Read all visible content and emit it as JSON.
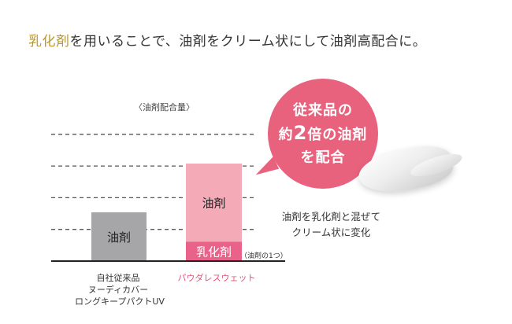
{
  "headline": {
    "accent": "乳化剤",
    "rest": "を用いることで、油剤をクリーム状にして油剤高配合に。"
  },
  "chart_data": {
    "type": "bar",
    "title": "〈油剤配合量〉",
    "categories": [
      "自社従来品 ヌーディカバー ロングキープパクトUV",
      "パウダレスウェット"
    ],
    "series": [
      {
        "name": "油剤",
        "values": [
          1,
          1.6
        ]
      },
      {
        "name": "乳化剤",
        "values": [
          0,
          0.4
        ]
      }
    ],
    "bar_labels": {
      "oil": "油剤",
      "emulsifier": "乳化剤"
    },
    "ylim": [
      0,
      3.0
    ],
    "grid": true,
    "colors": {
      "conventional": "#a6a6a8",
      "oil": "#f5aab8",
      "emulsifier": "#e8628a",
      "grid": "#555555",
      "baseline": "#222222"
    }
  },
  "xlabels": {
    "conventional_line1": "自社従来品",
    "conventional_line2": "ヌーディカバー",
    "conventional_line3": "ロングキープパクトUV",
    "new_product": "パウダレスウェット"
  },
  "emulsifier_note": "（油剤の1つ）",
  "callout": {
    "line1": "従来品の",
    "line2_pre": "約",
    "line2_num": "2",
    "line2_post": "倍の油剤",
    "line3": "を配合"
  },
  "mix_note": {
    "line1": "油剤を乳化剤と混ぜて",
    "line2": "クリーム状に変化"
  }
}
